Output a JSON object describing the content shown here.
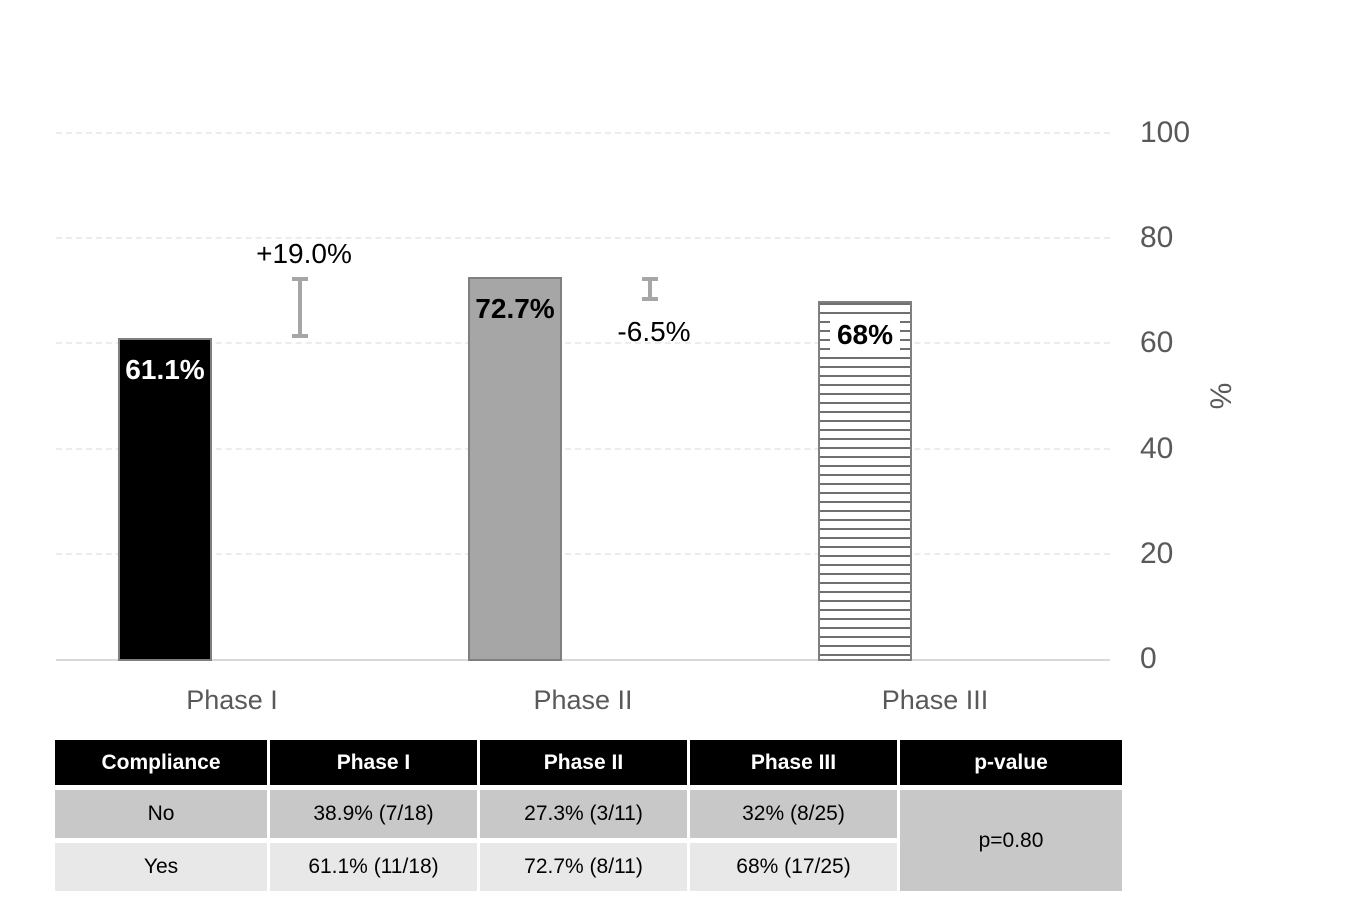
{
  "chart_data": {
    "type": "bar",
    "title": "",
    "categories": [
      "Phase I",
      "Phase II",
      "Phase III"
    ],
    "values": [
      61.1,
      72.7,
      68
    ],
    "bar_labels": [
      "61.1%",
      "72.7%",
      "68%"
    ],
    "bar_styles": [
      "solid-black",
      "solid-gray",
      "horizontal-stripes"
    ],
    "error_bars": [
      {
        "between": [
          "Phase I",
          "Phase II"
        ],
        "low": 61.1,
        "high": 72.7,
        "label": "+19.0%",
        "label_position": "above"
      },
      {
        "between": [
          "Phase II",
          "Phase III"
        ],
        "low": 68,
        "high": 72.7,
        "label": "-6.5%",
        "label_position": "below"
      }
    ],
    "xlabel": "",
    "ylabel": "%",
    "yticks": [
      0,
      20,
      40,
      60,
      80,
      100
    ],
    "ylim": [
      0,
      100
    ],
    "grid": "horizontal dashed",
    "y_axis_side": "right",
    "legend": "none"
  },
  "table": {
    "headers": [
      "Compliance",
      "Phase I",
      "Phase II",
      "Phase III",
      "p-value"
    ],
    "rows": [
      {
        "label": "No",
        "values": [
          "38.9% (7/18)",
          "27.3% (3/11)",
          "32% (8/25)"
        ]
      },
      {
        "label": "Yes",
        "values": [
          "61.1% (11/18)",
          "72.7% (8/11)",
          "68% (17/25)"
        ]
      }
    ],
    "p_value": "p=0.80"
  },
  "colors": {
    "bar_black": "#000000",
    "bar_gray": "#a6a6a6",
    "stripe_gray": "#707070",
    "bar_border": "#7f7f7f",
    "error_bar": "#a6a6a6",
    "grid_line": "#ececec",
    "axis_line": "#d9d9d9",
    "axis_text": "#595959",
    "annotation_text": "#000000",
    "table_header_bg": "#000000",
    "table_header_text": "#ffffff",
    "row_no_bg": "#c8c8c8",
    "row_yes_bg": "#e8e8e8",
    "p_cell_bg": "#c8c8c8"
  }
}
